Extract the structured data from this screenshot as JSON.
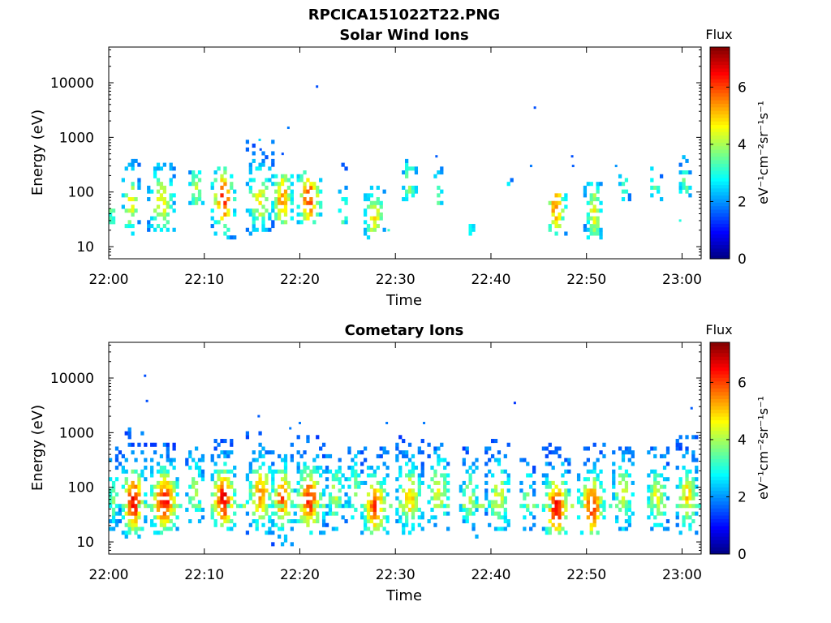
{
  "figure_title": "RPCICA151022T22.PNG",
  "colors": {
    "frame": "#000000",
    "background": "#ffffff",
    "colormap": "jet"
  },
  "chart_data": [
    {
      "type": "heatmap",
      "title": "Solar Wind Ions",
      "xlabel": "Time",
      "ylabel": "Energy (eV)",
      "y_scale": "log",
      "x_ticks": [
        "22:00",
        "22:10",
        "22:20",
        "22:30",
        "22:40",
        "22:50",
        "23:00"
      ],
      "y_ticks": [
        "10",
        "100",
        "1000",
        "10000"
      ],
      "y_range": [
        6,
        45000
      ],
      "x_range_minutes": [
        0,
        62
      ],
      "colorbar": {
        "title": "Flux",
        "label": "eV⁻¹cm⁻²sr⁻¹s⁻¹",
        "range": [
          0,
          7.4
        ],
        "ticks": [
          "0",
          "2",
          "4",
          "6"
        ]
      },
      "bursts": [
        {
          "t": 0.3,
          "e": 35,
          "w": 0.5,
          "emin": 25,
          "emax": 45,
          "peak": 3.5,
          "density": 0.7
        },
        {
          "t": 2.3,
          "e": 60,
          "w": 1.0,
          "emin": 15,
          "emax": 400,
          "peak": 4.5,
          "density": 0.45
        },
        {
          "t": 5.5,
          "e": 60,
          "w": 1.5,
          "emin": 17,
          "emax": 300,
          "peak": 4.6,
          "density": 0.45
        },
        {
          "t": 9.2,
          "e": 100,
          "w": 0.8,
          "emin": 50,
          "emax": 230,
          "peak": 4.0,
          "density": 0.45
        },
        {
          "t": 12.0,
          "e": 70,
          "w": 1.3,
          "emin": 12,
          "emax": 300,
          "peak": 6.2,
          "density": 0.5
        },
        {
          "t": 15.8,
          "e": 70,
          "w": 1.4,
          "emin": 15,
          "emax": 900,
          "peak": 4.6,
          "density": 0.45
        },
        {
          "t": 18.2,
          "e": 70,
          "w": 1.2,
          "emin": 25,
          "emax": 200,
          "peak": 5.5,
          "density": 0.5
        },
        {
          "t": 21.0,
          "e": 70,
          "w": 1.4,
          "emin": 25,
          "emax": 220,
          "peak": 6.0,
          "density": 0.5
        },
        {
          "t": 24.5,
          "e": 40,
          "w": 0.6,
          "emin": 15,
          "emax": 300,
          "peak": 3.5,
          "density": 0.3
        },
        {
          "t": 27.8,
          "e": 30,
          "w": 1.2,
          "emin": 12,
          "emax": 120,
          "peak": 4.6,
          "density": 0.45
        },
        {
          "t": 31.5,
          "e": 130,
          "w": 0.9,
          "emin": 60,
          "emax": 400,
          "peak": 3.6,
          "density": 0.4
        },
        {
          "t": 34.5,
          "e": 90,
          "w": 0.5,
          "emin": 50,
          "emax": 300,
          "peak": 3.3,
          "density": 0.3
        },
        {
          "t": 38.0,
          "e": 20,
          "w": 0.3,
          "emin": 15,
          "emax": 25,
          "peak": 3.2,
          "density": 0.6
        },
        {
          "t": 41.8,
          "e": 150,
          "w": 0.4,
          "emin": 130,
          "emax": 180,
          "peak": 3.0,
          "density": 0.5
        },
        {
          "t": 46.8,
          "e": 50,
          "w": 1.1,
          "emin": 15,
          "emax": 90,
          "peak": 5.5,
          "density": 0.5
        },
        {
          "t": 50.8,
          "e": 40,
          "w": 1.0,
          "emin": 12,
          "emax": 150,
          "peak": 4.6,
          "density": 0.45
        },
        {
          "t": 54.0,
          "e": 120,
          "w": 0.6,
          "emin": 60,
          "emax": 200,
          "peak": 3.0,
          "density": 0.35
        },
        {
          "t": 57.2,
          "e": 100,
          "w": 0.7,
          "emin": 40,
          "emax": 300,
          "peak": 3.3,
          "density": 0.35
        },
        {
          "t": 60.3,
          "e": 110,
          "w": 0.7,
          "emin": 60,
          "emax": 500,
          "peak": 3.5,
          "density": 0.35
        }
      ],
      "dots": [
        {
          "t": 21.8,
          "e": 8500,
          "v": 1.5
        },
        {
          "t": 44.6,
          "e": 3500,
          "v": 1.5
        },
        {
          "t": 18.8,
          "e": 1500,
          "v": 1.8
        },
        {
          "t": 15.8,
          "e": 900,
          "v": 2.5
        },
        {
          "t": 15.9,
          "e": 600,
          "v": 1.5
        },
        {
          "t": 18.2,
          "e": 500,
          "v": 1.5
        },
        {
          "t": 34.3,
          "e": 450,
          "v": 1.6
        },
        {
          "t": 48.5,
          "e": 450,
          "v": 1.5
        },
        {
          "t": 48.6,
          "e": 300,
          "v": 1.6
        },
        {
          "t": 44.2,
          "e": 300,
          "v": 1.8
        },
        {
          "t": 53.1,
          "e": 300,
          "v": 2.0
        },
        {
          "t": 29.3,
          "e": 20,
          "v": 3.2
        },
        {
          "t": 59.8,
          "e": 30,
          "v": 3.0
        }
      ]
    },
    {
      "type": "heatmap",
      "title": "Cometary Ions",
      "xlabel": "Time",
      "ylabel": "Energy (eV)",
      "y_scale": "log",
      "x_ticks": [
        "22:00",
        "22:10",
        "22:20",
        "22:30",
        "22:40",
        "22:50",
        "23:00"
      ],
      "y_ticks": [
        "10",
        "100",
        "1000",
        "10000"
      ],
      "y_range": [
        6,
        45000
      ],
      "x_range_minutes": [
        0,
        62
      ],
      "colorbar": {
        "title": "Flux",
        "label": "eV⁻¹cm⁻²sr⁻¹s⁻¹",
        "range": [
          0,
          7.4
        ],
        "ticks": [
          "0",
          "2",
          "4",
          "6"
        ]
      },
      "band": {
        "e": 42,
        "peak": 3.5,
        "density": 0.5
      },
      "bursts": [
        {
          "t": 0.5,
          "e": 60,
          "w": 0.8,
          "emin": 15,
          "emax": 500,
          "peak": 3.5,
          "density": 0.45
        },
        {
          "t": 2.6,
          "e": 50,
          "w": 1.3,
          "emin": 10,
          "emax": 1100,
          "peak": 6.6,
          "density": 0.6
        },
        {
          "t": 5.8,
          "e": 50,
          "w": 1.6,
          "emin": 12,
          "emax": 650,
          "peak": 6.5,
          "density": 0.6
        },
        {
          "t": 9.0,
          "e": 80,
          "w": 1.0,
          "emin": 20,
          "emax": 500,
          "peak": 4.0,
          "density": 0.45
        },
        {
          "t": 12.0,
          "e": 55,
          "w": 1.4,
          "emin": 15,
          "emax": 700,
          "peak": 6.6,
          "density": 0.6
        },
        {
          "t": 15.9,
          "e": 70,
          "w": 1.5,
          "emin": 12,
          "emax": 1000,
          "peak": 5.5,
          "density": 0.6
        },
        {
          "t": 18.2,
          "e": 60,
          "w": 1.3,
          "emin": 8,
          "emax": 650,
          "peak": 5.8,
          "density": 0.6
        },
        {
          "t": 21.0,
          "e": 55,
          "w": 1.6,
          "emin": 12,
          "emax": 900,
          "peak": 6.2,
          "density": 0.6
        },
        {
          "t": 23.7,
          "e": 70,
          "w": 1.0,
          "emin": 15,
          "emax": 400,
          "peak": 4.2,
          "density": 0.45
        },
        {
          "t": 25.8,
          "e": 80,
          "w": 1.0,
          "emin": 20,
          "emax": 500,
          "peak": 3.8,
          "density": 0.45
        },
        {
          "t": 27.9,
          "e": 40,
          "w": 1.4,
          "emin": 12,
          "emax": 500,
          "peak": 6.0,
          "density": 0.6
        },
        {
          "t": 31.5,
          "e": 60,
          "w": 1.5,
          "emin": 12,
          "emax": 900,
          "peak": 5.0,
          "density": 0.55
        },
        {
          "t": 34.5,
          "e": 80,
          "w": 1.3,
          "emin": 15,
          "emax": 600,
          "peak": 4.5,
          "density": 0.5
        },
        {
          "t": 37.8,
          "e": 60,
          "w": 1.0,
          "emin": 10,
          "emax": 500,
          "peak": 4.0,
          "density": 0.45
        },
        {
          "t": 40.8,
          "e": 60,
          "w": 1.3,
          "emin": 15,
          "emax": 700,
          "peak": 4.5,
          "density": 0.5
        },
        {
          "t": 43.8,
          "e": 60,
          "w": 0.8,
          "emin": 15,
          "emax": 300,
          "peak": 3.5,
          "density": 0.4
        },
        {
          "t": 46.9,
          "e": 40,
          "w": 1.5,
          "emin": 12,
          "emax": 600,
          "peak": 6.5,
          "density": 0.6
        },
        {
          "t": 50.6,
          "e": 40,
          "w": 1.5,
          "emin": 12,
          "emax": 600,
          "peak": 6.3,
          "density": 0.6
        },
        {
          "t": 53.8,
          "e": 70,
          "w": 1.2,
          "emin": 15,
          "emax": 500,
          "peak": 4.5,
          "density": 0.5
        },
        {
          "t": 57.4,
          "e": 60,
          "w": 1.2,
          "emin": 15,
          "emax": 500,
          "peak": 4.5,
          "density": 0.5
        },
        {
          "t": 60.6,
          "e": 60,
          "w": 1.2,
          "emin": 12,
          "emax": 800,
          "peak": 5.0,
          "density": 0.55
        }
      ],
      "dots": [
        {
          "t": 3.8,
          "e": 11000,
          "v": 1.5
        },
        {
          "t": 4.0,
          "e": 3800,
          "v": 1.5
        },
        {
          "t": 42.5,
          "e": 3500,
          "v": 1.3
        },
        {
          "t": 15.7,
          "e": 2000,
          "v": 1.6
        },
        {
          "t": 61.0,
          "e": 2800,
          "v": 1.6
        },
        {
          "t": 20.0,
          "e": 1500,
          "v": 1.8
        },
        {
          "t": 33.0,
          "e": 1500,
          "v": 1.8
        },
        {
          "t": 29.1,
          "e": 1500,
          "v": 1.8
        },
        {
          "t": 19.0,
          "e": 1200,
          "v": 1.8
        }
      ]
    }
  ]
}
